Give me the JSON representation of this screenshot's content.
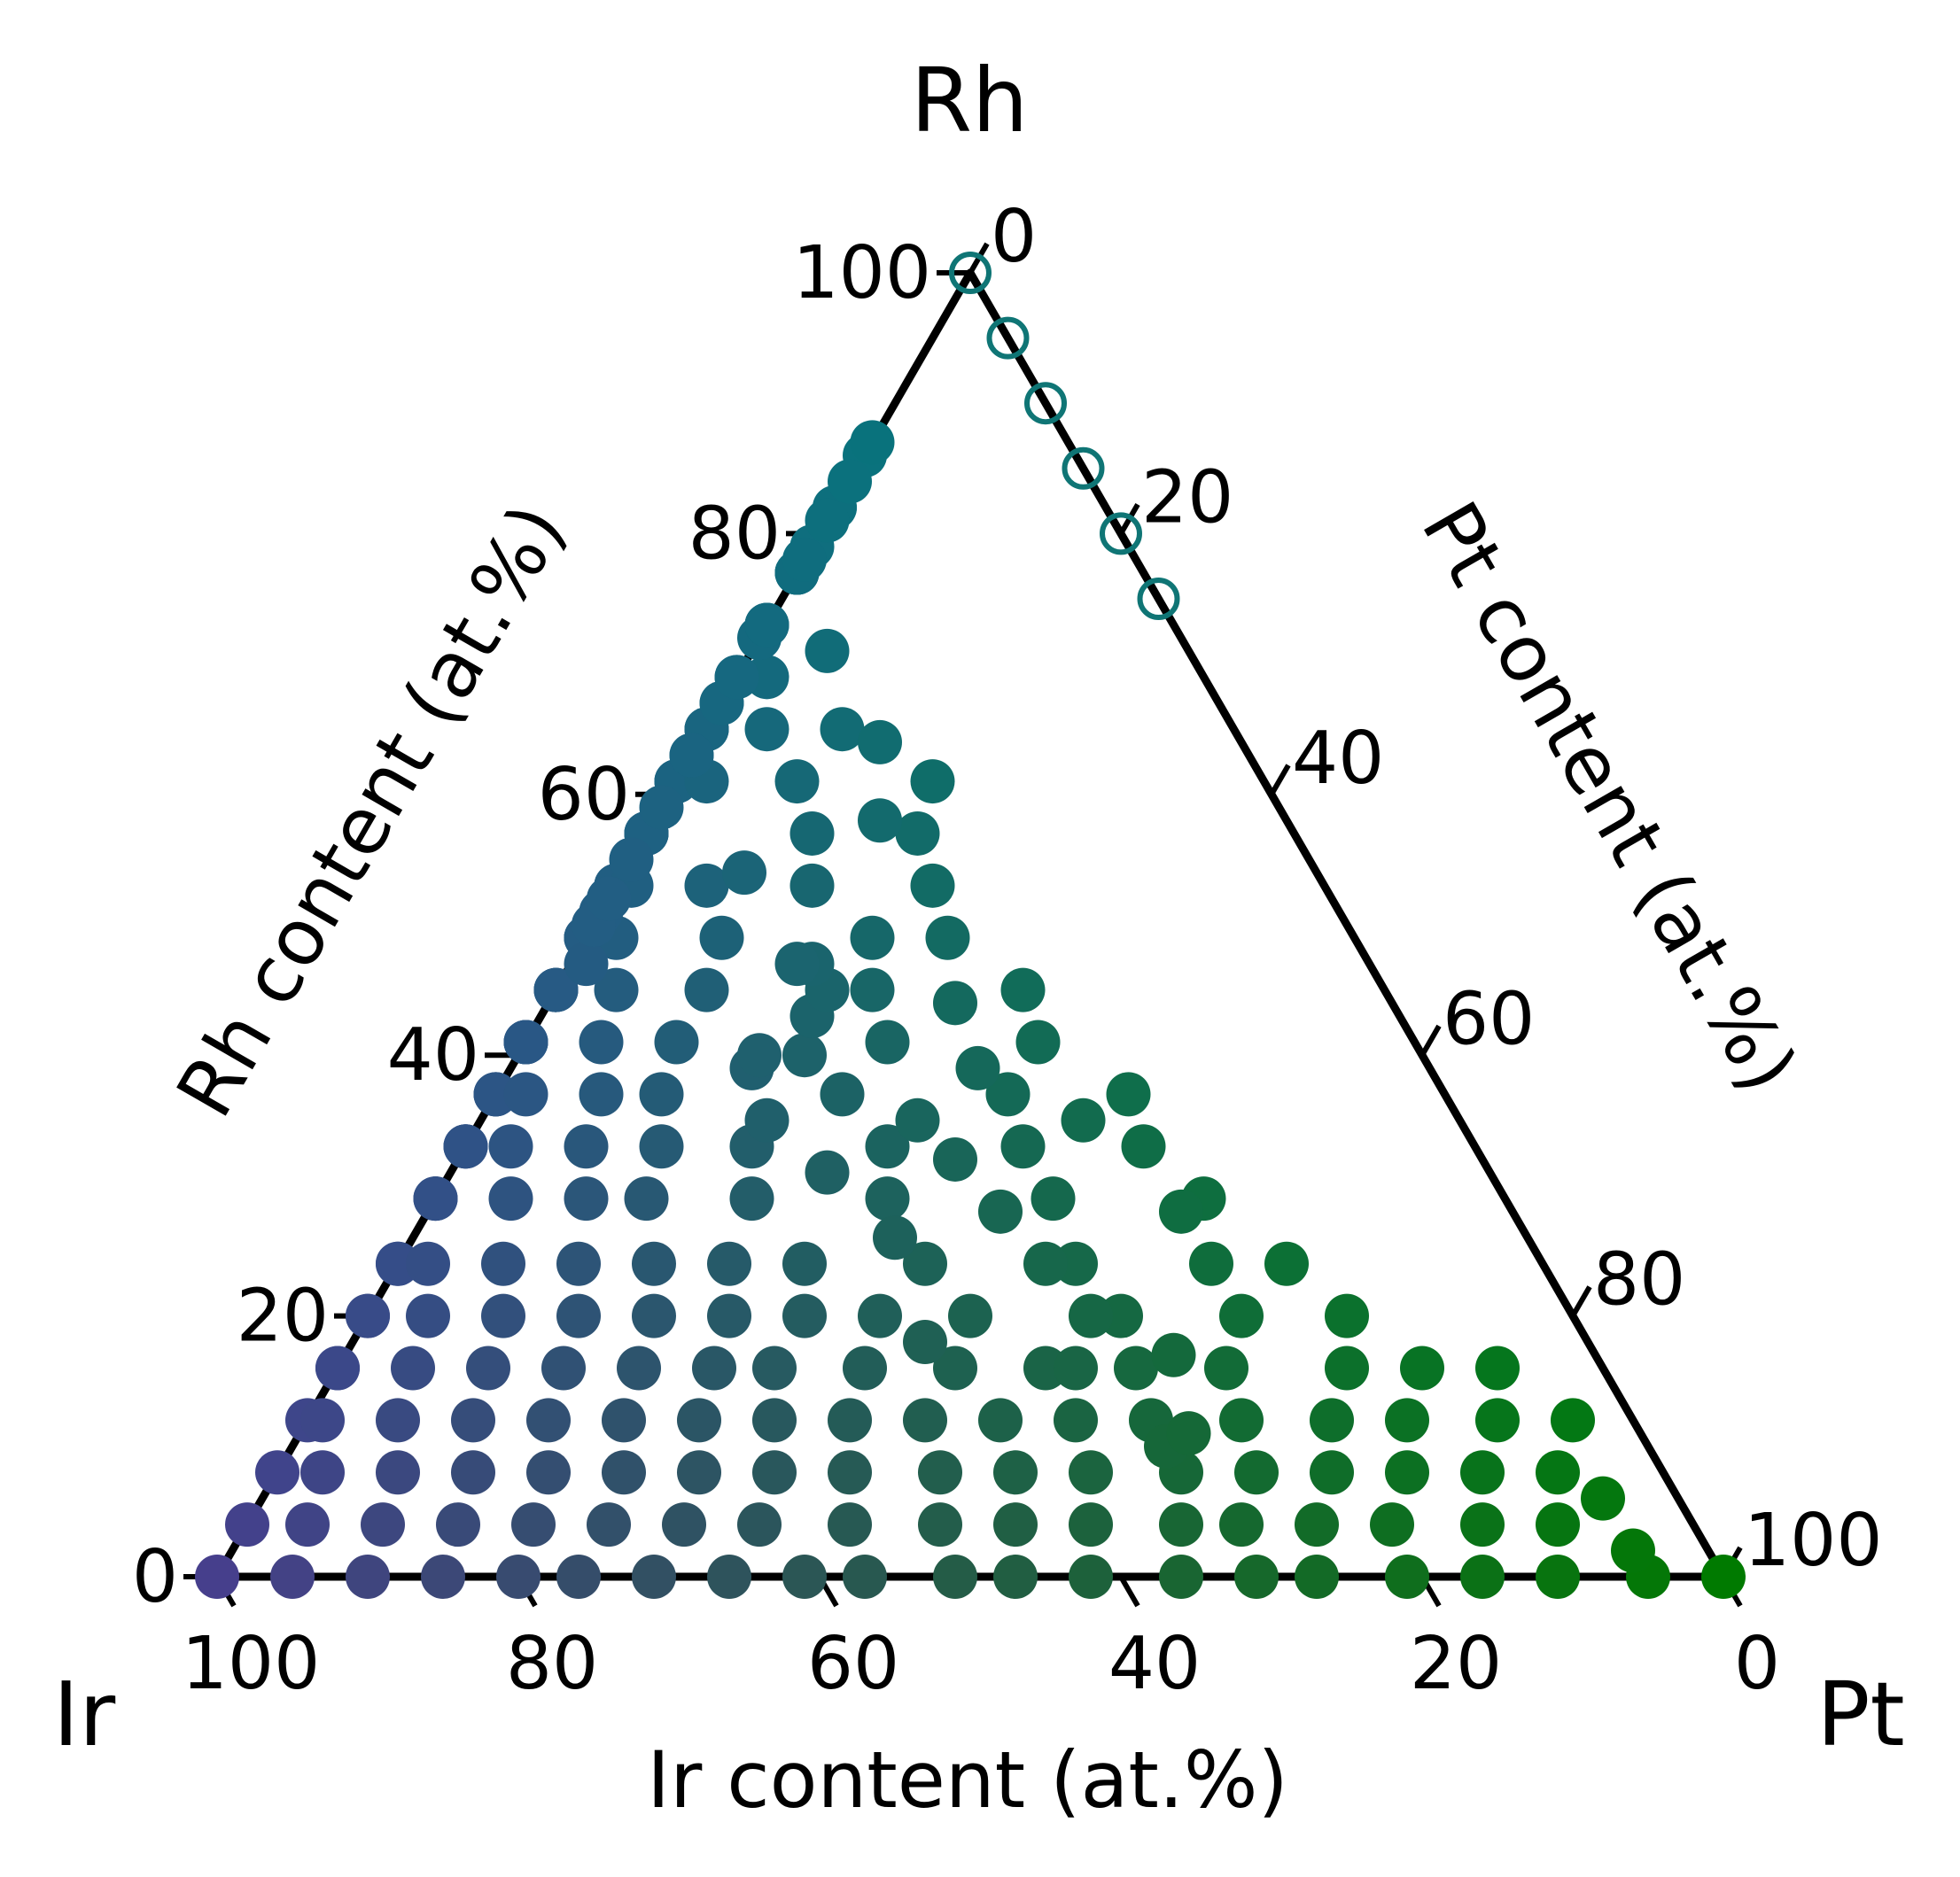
{
  "chart_data": {
    "type": "scatter",
    "subtype": "ternary",
    "corner_labels": {
      "left": "Ir",
      "right": "Pt",
      "top": "Rh"
    },
    "axis_titles": {
      "bottom": "Ir content (at.%)",
      "left": "Rh content (at.%)",
      "right": "Pt content (at.%)"
    },
    "ticks": {
      "bottom": [
        "100",
        "80",
        "60",
        "40",
        "20",
        "0"
      ],
      "left": [
        "0",
        "20",
        "40",
        "60",
        "80",
        "100"
      ],
      "right": [
        "0",
        "20",
        "40",
        "60",
        "80",
        "100"
      ]
    },
    "axis_range": [
      0,
      100
    ],
    "grid": false,
    "legend": "none",
    "colors": {
      "ir_rich": "#463f8c",
      "rh_rich": "#007a7a",
      "pt_rich": "#007a00",
      "axis": "#000000"
    },
    "points_filled": [
      [
        100,
        0
      ],
      [
        95,
        0
      ],
      [
        90,
        0
      ],
      [
        85,
        0
      ],
      [
        80,
        0
      ],
      [
        76,
        0
      ],
      [
        71,
        0
      ],
      [
        66,
        0
      ],
      [
        61,
        0
      ],
      [
        57,
        0
      ],
      [
        51,
        0
      ],
      [
        47,
        0
      ],
      [
        42,
        0
      ],
      [
        36,
        0
      ],
      [
        31,
        0
      ],
      [
        27,
        0
      ],
      [
        21,
        0
      ],
      [
        16,
        0
      ],
      [
        11,
        0
      ],
      [
        5,
        0
      ],
      [
        0,
        0
      ],
      [
        97,
        4
      ],
      [
        92,
        4
      ],
      [
        87,
        4
      ],
      [
        82,
        4
      ],
      [
        77,
        4
      ],
      [
        72,
        4
      ],
      [
        67,
        4
      ],
      [
        62,
        4
      ],
      [
        56,
        4
      ],
      [
        50,
        4
      ],
      [
        45,
        4
      ],
      [
        40,
        4
      ],
      [
        34,
        4
      ],
      [
        30,
        4
      ],
      [
        25,
        4
      ],
      [
        20,
        4
      ],
      [
        14,
        4
      ],
      [
        9,
        4
      ],
      [
        5,
        2
      ],
      [
        94,
        8
      ],
      [
        89,
        8
      ],
      [
        84,
        8
      ],
      [
        79,
        8
      ],
      [
        74,
        8
      ],
      [
        69,
        8
      ],
      [
        64,
        8
      ],
      [
        59,
        8
      ],
      [
        54,
        8
      ],
      [
        48,
        8
      ],
      [
        43,
        8
      ],
      [
        38,
        8
      ],
      [
        32,
        8
      ],
      [
        27,
        8
      ],
      [
        22,
        8
      ],
      [
        17,
        8
      ],
      [
        12,
        8
      ],
      [
        7,
        8
      ],
      [
        5,
        6
      ],
      [
        92,
        12
      ],
      [
        87,
        12
      ],
      [
        82,
        12
      ],
      [
        77,
        12
      ],
      [
        72,
        12
      ],
      [
        67,
        12
      ],
      [
        62,
        12
      ],
      [
        57,
        12
      ],
      [
        52,
        12
      ],
      [
        47,
        12
      ],
      [
        42,
        12
      ],
      [
        37,
        12
      ],
      [
        32,
        12
      ],
      [
        26,
        12
      ],
      [
        20,
        12
      ],
      [
        15,
        12
      ],
      [
        9,
        12
      ],
      [
        4,
        12
      ],
      [
        32,
        10
      ],
      [
        30,
        11
      ],
      [
        89,
        16
      ],
      [
        84,
        16
      ],
      [
        79,
        16
      ],
      [
        74,
        16
      ],
      [
        69,
        16
      ],
      [
        64,
        16
      ],
      [
        59,
        16
      ],
      [
        55,
        16
      ],
      [
        49,
        16
      ],
      [
        43,
        16
      ],
      [
        37,
        16
      ],
      [
        31,
        16
      ],
      [
        25,
        16
      ],
      [
        17,
        16
      ],
      [
        12,
        16
      ],
      [
        7,
        16
      ],
      [
        35,
        16
      ],
      [
        28,
        17
      ],
      [
        86,
        20
      ],
      [
        81,
        20
      ],
      [
        76,
        20
      ],
      [
        71,
        20
      ],
      [
        66,
        20
      ],
      [
        61,
        20
      ],
      [
        56,
        20
      ],
      [
        51,
        20
      ],
      [
        46,
        20
      ],
      [
        40,
        20
      ],
      [
        30,
        20
      ],
      [
        22,
        20
      ],
      [
        15,
        20
      ],
      [
        44,
        18
      ],
      [
        32,
        20
      ],
      [
        84,
        24
      ],
      [
        79,
        24
      ],
      [
        74,
        24
      ],
      [
        69,
        24
      ],
      [
        64,
        24
      ],
      [
        59,
        24
      ],
      [
        54,
        24
      ],
      [
        49,
        24
      ],
      [
        41,
        24
      ],
      [
        31,
        24
      ],
      [
        22,
        24
      ],
      [
        17,
        24
      ],
      [
        33,
        24
      ],
      [
        81,
        29
      ],
      [
        76,
        29
      ],
      [
        71,
        29
      ],
      [
        66,
        29
      ],
      [
        61,
        29
      ],
      [
        57,
        29
      ],
      [
        50,
        29
      ],
      [
        41,
        29
      ],
      [
        30,
        29
      ],
      [
        20,
        29
      ],
      [
        34,
        28
      ],
      [
        42,
        26
      ],
      [
        22,
        28
      ],
      [
        79,
        33
      ],
      [
        74,
        33
      ],
      [
        69,
        33
      ],
      [
        64,
        33
      ],
      [
        59,
        33
      ],
      [
        54,
        33
      ],
      [
        48,
        33
      ],
      [
        39,
        33
      ],
      [
        30,
        33
      ],
      [
        22,
        33
      ],
      [
        44,
        31
      ],
      [
        35,
        32
      ],
      [
        76,
        37
      ],
      [
        71,
        37
      ],
      [
        66,
        37
      ],
      [
        61,
        37
      ],
      [
        56,
        37
      ],
      [
        52,
        37
      ],
      [
        40,
        37
      ],
      [
        29,
        37
      ],
      [
        21,
        37
      ],
      [
        46,
        35
      ],
      [
        36,
        35
      ],
      [
        25,
        35
      ],
      [
        74,
        41
      ],
      [
        69,
        41
      ],
      [
        64,
        41
      ],
      [
        59,
        41
      ],
      [
        54,
        41
      ],
      [
        49,
        41
      ],
      [
        35,
        41
      ],
      [
        25,
        41
      ],
      [
        45,
        39
      ],
      [
        41,
        40
      ],
      [
        30,
        39
      ],
      [
        44,
        40
      ],
      [
        71,
        45
      ],
      [
        66,
        45
      ],
      [
        61,
        45
      ],
      [
        56,
        45
      ],
      [
        51,
        45
      ],
      [
        45,
        45
      ],
      [
        34,
        45
      ],
      [
        24,
        45
      ],
      [
        39,
        43
      ],
      [
        37,
        45
      ],
      [
        29,
        44
      ],
      [
        69,
        49
      ],
      [
        64,
        49
      ],
      [
        59,
        49
      ],
      [
        54,
        49
      ],
      [
        49,
        49
      ],
      [
        42,
        49
      ],
      [
        32,
        49
      ],
      [
        27,
        49
      ],
      [
        37,
        47
      ],
      [
        52,
        47
      ],
      [
        38,
        47
      ],
      [
        66,
        53
      ],
      [
        61,
        53
      ],
      [
        56,
        53
      ],
      [
        51,
        53
      ],
      [
        46,
        53
      ],
      [
        41,
        53
      ],
      [
        34,
        53
      ],
      [
        26,
        53
      ],
      [
        55,
        51
      ],
      [
        57,
        50
      ],
      [
        53,
        52
      ],
      [
        64,
        57
      ],
      [
        59,
        57
      ],
      [
        54,
        57
      ],
      [
        49,
        57
      ],
      [
        43,
        57
      ],
      [
        32,
        57
      ],
      [
        25,
        57
      ],
      [
        38,
        54
      ],
      [
        58,
        55
      ],
      [
        61,
        61
      ],
      [
        55,
        61
      ],
      [
        50,
        61
      ],
      [
        44,
        61
      ],
      [
        37,
        61
      ],
      [
        31,
        61
      ],
      [
        22,
        61
      ],
      [
        53,
        59
      ],
      [
        27,
        58
      ],
      [
        55,
        65
      ],
      [
        45,
        65
      ],
      [
        38,
        65
      ],
      [
        31,
        65
      ],
      [
        26,
        65
      ],
      [
        49,
        63
      ],
      [
        37,
        63
      ],
      [
        24,
        64
      ],
      [
        57,
        67
      ],
      [
        43,
        67
      ],
      [
        37,
        69
      ],
      [
        29,
        69
      ],
      [
        46,
        69
      ],
      [
        35,
        72
      ],
      [
        24,
        71
      ],
      [
        40,
        73
      ],
      [
        34,
        73
      ],
      [
        38,
        77
      ],
      [
        44,
        77
      ],
      [
        33,
        77
      ],
      [
        25,
        77
      ],
      [
        35,
        82
      ],
      [
        27,
        82
      ],
      [
        41,
        79
      ],
      [
        31,
        86
      ],
      [
        26,
        87
      ],
      [
        41,
        73
      ],
      [
        39,
        81
      ],
      [
        48,
        78
      ],
      [
        31,
        84
      ]
    ],
    "points_open": [
      [
        0,
        100
      ],
      [
        5,
        95
      ],
      [
        10,
        90
      ],
      [
        15,
        85
      ],
      [
        20,
        80
      ],
      [
        25,
        75
      ]
    ]
  }
}
